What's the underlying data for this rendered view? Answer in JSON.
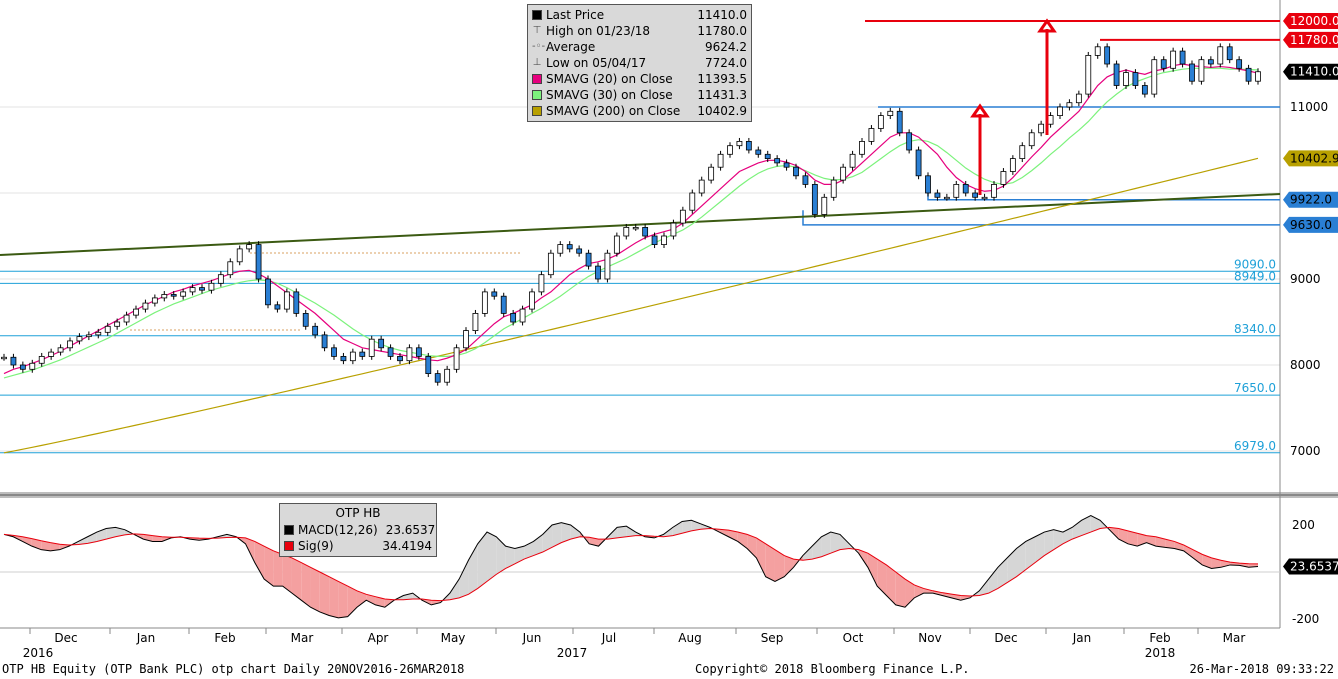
{
  "chart_data": [
    {
      "type": "line",
      "subtype": "candlestick",
      "ticker": "OTP HB Equity",
      "ylim": [
        6600,
        12300
      ],
      "yticks": [
        7000,
        8000,
        9000,
        11000
      ],
      "legend": {
        "items": [
          {
            "label": "Last Price",
            "value": "11410.0",
            "color": "#000000"
          },
          {
            "label": "High on 01/23/18",
            "value": "11780.0",
            "color": "#888888"
          },
          {
            "label": "Average",
            "value": "9624.2",
            "color": "#888888"
          },
          {
            "label": "Low on 05/04/17",
            "value": "7724.0",
            "color": "#888888"
          },
          {
            "label": "SMAVG (20) on Close",
            "value": "11393.5",
            "color": "#e6007e"
          },
          {
            "label": "SMAVG (30) on Close",
            "value": "11431.3",
            "color": "#7cf27c"
          },
          {
            "label": "SMAVG (200) on Close",
            "value": "10402.9",
            "color": "#b8a000"
          }
        ]
      },
      "price_tags": [
        {
          "text": "12000.0",
          "value": 12000,
          "bg": "#e8000d",
          "fg": "#ffffff"
        },
        {
          "text": "11780.0",
          "value": 11780,
          "bg": "#e8000d",
          "fg": "#ffffff"
        },
        {
          "text": "11410.0",
          "value": 11410,
          "bg": "#000000",
          "fg": "#ffffff"
        },
        {
          "text": "10402.9",
          "value": 10402.9,
          "bg": "#b8a000",
          "fg": "#000000"
        },
        {
          "text": "9922.0",
          "value": 9922,
          "bg": "#2a7fd4",
          "fg": "#000000"
        },
        {
          "text": "9630.0",
          "value": 9630,
          "bg": "#2a7fd4",
          "fg": "#000000"
        }
      ],
      "fib_levels": [
        {
          "text": "9090.0",
          "value": 9090
        },
        {
          "text": "8949.0",
          "value": 8949
        },
        {
          "text": "8340.0",
          "value": 8340
        },
        {
          "text": "7650.0",
          "value": 7650
        },
        {
          "text": "6979.0",
          "value": 6979
        }
      ],
      "close_series": [
        8090,
        8000,
        7950,
        8020,
        8100,
        8150,
        8200,
        8280,
        8330,
        8350,
        8380,
        8450,
        8500,
        8580,
        8650,
        8720,
        8780,
        8820,
        8800,
        8850,
        8900,
        8870,
        8950,
        9050,
        9200,
        9350,
        9400,
        9000,
        8700,
        8650,
        8850,
        8600,
        8450,
        8350,
        8200,
        8100,
        8050,
        8150,
        8100,
        8300,
        8200,
        8100,
        8050,
        8200,
        8100,
        7900,
        7800,
        7950,
        8200,
        8400,
        8600,
        8850,
        8800,
        8600,
        8500,
        8650,
        8850,
        9050,
        9300,
        9400,
        9350,
        9300,
        9150,
        9000,
        9300,
        9500,
        9600,
        9600,
        9500,
        9400,
        9500,
        9650,
        9800,
        10000,
        10150,
        10300,
        10450,
        10550,
        10600,
        10500,
        10450,
        10400,
        10350,
        10300,
        10200,
        10100,
        9750,
        9950,
        10150,
        10300,
        10450,
        10600,
        10750,
        10900,
        10950,
        10700,
        10500,
        10200,
        10000,
        9950,
        9950,
        10100,
        10000,
        9950,
        9950,
        10100,
        10250,
        10400,
        10550,
        10700,
        10800,
        10900,
        11000,
        11050,
        11150,
        11600,
        11700,
        11500,
        11250,
        11400,
        11250,
        11150,
        11550,
        11450,
        11650,
        11500,
        11300,
        11550,
        11500,
        11700,
        11550,
        11450,
        11300,
        11410
      ],
      "sma20_series": [
        7900,
        7950,
        7980,
        8020,
        8060,
        8110,
        8160,
        8220,
        8280,
        8340,
        8400,
        8460,
        8520,
        8580,
        8640,
        8700,
        8750,
        8800,
        8850,
        8880,
        8920,
        8950,
        8980,
        9020,
        9060,
        9090,
        9100,
        9060,
        9000,
        8920,
        8840,
        8760,
        8680,
        8600,
        8500,
        8400,
        8300,
        8250,
        8200,
        8180,
        8160,
        8140,
        8120,
        8100,
        8080,
        8060,
        8050,
        8080,
        8120,
        8180,
        8280,
        8380,
        8480,
        8560,
        8600,
        8650,
        8700,
        8780,
        8850,
        8950,
        9050,
        9120,
        9180,
        9200,
        9230,
        9280,
        9350,
        9420,
        9480,
        9520,
        9550,
        9580,
        9650,
        9750,
        9850,
        9950,
        10050,
        10150,
        10250,
        10300,
        10350,
        10380,
        10380,
        10360,
        10320,
        10250,
        10150,
        10100,
        10100,
        10150,
        10250,
        10350,
        10450,
        10550,
        10650,
        10700,
        10700,
        10650,
        10550,
        10450,
        10300,
        10180,
        10100,
        10050,
        10020,
        10030,
        10080,
        10180,
        10300,
        10420,
        10530,
        10650,
        10750,
        10850,
        10950,
        11100,
        11250,
        11350,
        11400,
        11430,
        11400,
        11380,
        11420,
        11440,
        11480,
        11500,
        11480,
        11470,
        11460,
        11470,
        11460,
        11440,
        11420,
        11393.5
      ],
      "sma30_series": [
        7850,
        7880,
        7910,
        7940,
        7980,
        8020,
        8060,
        8110,
        8160,
        8210,
        8260,
        8310,
        8370,
        8430,
        8490,
        8550,
        8610,
        8660,
        8710,
        8750,
        8790,
        8830,
        8870,
        8900,
        8930,
        8960,
        8980,
        8990,
        8980,
        8950,
        8900,
        8840,
        8780,
        8720,
        8650,
        8580,
        8500,
        8420,
        8350,
        8290,
        8240,
        8200,
        8170,
        8150,
        8130,
        8110,
        8100,
        8100,
        8110,
        8140,
        8190,
        8260,
        8340,
        8420,
        8480,
        8540,
        8600,
        8660,
        8730,
        8800,
        8880,
        8960,
        9030,
        9090,
        9140,
        9190,
        9240,
        9300,
        9360,
        9420,
        9470,
        9520,
        9570,
        9640,
        9720,
        9810,
        9900,
        9990,
        10080,
        10160,
        10230,
        10280,
        10310,
        10320,
        10300,
        10260,
        10210,
        10170,
        10150,
        10160,
        10190,
        10240,
        10320,
        10400,
        10480,
        10550,
        10600,
        10620,
        10600,
        10550,
        10470,
        10380,
        10290,
        10220,
        10160,
        10120,
        10100,
        10120,
        10180,
        10260,
        10350,
        10450,
        10540,
        10640,
        10730,
        10830,
        10950,
        11060,
        11150,
        11230,
        11290,
        11330,
        11370,
        11400,
        11420,
        11440,
        11450,
        11450,
        11450,
        11450,
        11440,
        11440,
        11435,
        11431.3
      ],
      "sma200_start": 6979,
      "sma200_end": 10402.9
    },
    {
      "type": "area",
      "title": "OTP HB",
      "ylim": [
        -230,
        260
      ],
      "yticks": [
        200,
        -200
      ],
      "legend": {
        "items": [
          {
            "label": "MACD(12,26)",
            "value": "23.6537",
            "color": "#000000"
          },
          {
            "label": "Sig(9)",
            "value": "34.4194",
            "color": "#e8000d"
          }
        ]
      },
      "last_tag": "23.6537",
      "macd_series": [
        160,
        150,
        130,
        110,
        95,
        90,
        95,
        110,
        130,
        150,
        170,
        185,
        190,
        180,
        160,
        140,
        130,
        130,
        145,
        150,
        140,
        135,
        140,
        150,
        160,
        150,
        120,
        40,
        -30,
        -60,
        -60,
        -90,
        -120,
        -150,
        -170,
        -185,
        -195,
        -190,
        -150,
        -120,
        -140,
        -150,
        -120,
        -100,
        -90,
        -120,
        -140,
        -130,
        -90,
        -30,
        50,
        120,
        170,
        150,
        110,
        100,
        110,
        130,
        160,
        200,
        210,
        200,
        170,
        120,
        110,
        150,
        190,
        195,
        170,
        150,
        145,
        160,
        190,
        215,
        220,
        205,
        190,
        170,
        150,
        130,
        100,
        60,
        -20,
        -40,
        -20,
        20,
        70,
        110,
        150,
        170,
        160,
        120,
        80,
        20,
        -60,
        -100,
        -140,
        -150,
        -110,
        -90,
        -90,
        -100,
        -110,
        -120,
        -110,
        -80,
        -30,
        20,
        60,
        100,
        130,
        150,
        170,
        180,
        170,
        190,
        220,
        240,
        220,
        180,
        140,
        120,
        110,
        125,
        110,
        105,
        100,
        90,
        60,
        30,
        15,
        20,
        30,
        28,
        20,
        23.65
      ],
      "signal_series": [
        160,
        156,
        150,
        142,
        133,
        125,
        118,
        115,
        117,
        122,
        130,
        140,
        150,
        158,
        162,
        160,
        155,
        150,
        148,
        148,
        146,
        144,
        143,
        144,
        147,
        148,
        145,
        130,
        110,
        90,
        75,
        60,
        40,
        20,
        0,
        -20,
        -40,
        -60,
        -80,
        -95,
        -105,
        -115,
        -118,
        -118,
        -115,
        -115,
        -120,
        -122,
        -118,
        -110,
        -95,
        -70,
        -40,
        -10,
        15,
        35,
        55,
        70,
        85,
        105,
        125,
        140,
        150,
        148,
        140,
        140,
        145,
        150,
        155,
        155,
        152,
        150,
        155,
        165,
        175,
        182,
        185,
        182,
        178,
        170,
        160,
        145,
        120,
        95,
        70,
        55,
        50,
        55,
        65,
        80,
        95,
        100,
        95,
        80,
        55,
        30,
        0,
        -30,
        -55,
        -70,
        -80,
        -88,
        -94,
        -100,
        -102,
        -100,
        -90,
        -70,
        -45,
        -20,
        10,
        40,
        70,
        95,
        120,
        140,
        155,
        170,
        185,
        190,
        185,
        175,
        165,
        155,
        150,
        140,
        130,
        115,
        95,
        75,
        60,
        50,
        42,
        38,
        35,
        34.42
      ]
    }
  ],
  "x_axis": {
    "months": [
      "Dec",
      "Jan",
      "Feb",
      "Mar",
      "Apr",
      "May",
      "Jun",
      "Jul",
      "Aug",
      "Sep",
      "Oct",
      "Nov",
      "Dec",
      "Jan",
      "Feb",
      "Mar"
    ],
    "years": [
      "2016",
      "2017",
      "2018"
    ]
  },
  "footer": {
    "left": "OTP HB Equity (OTP Bank PLC) otp chart  Daily 20NOV2016-26MAR2018",
    "center": "Copyright© 2018 Bloomberg Finance L.P.",
    "right": "26-Mar-2018 09:33:22"
  }
}
